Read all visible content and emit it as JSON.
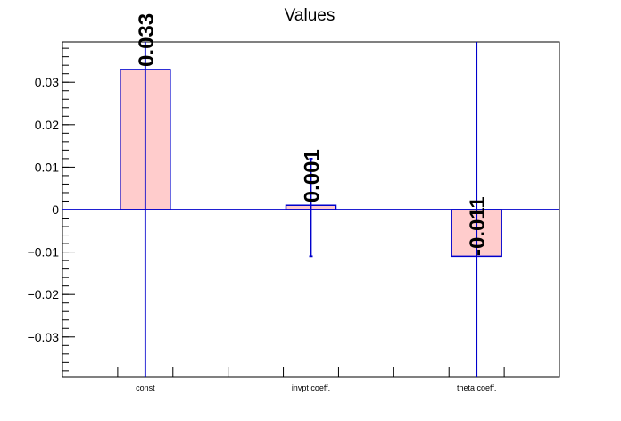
{
  "chart_data": {
    "type": "bar",
    "title": "Values",
    "xlabel": "",
    "ylabel": "",
    "categories": [
      "const",
      "invpt coeff.",
      "theta coeff."
    ],
    "values": [
      0.033,
      0.001,
      -0.011
    ],
    "value_labels": [
      "0.033",
      "0.001",
      "-0.011"
    ],
    "errors": [
      {
        "low": -0.04,
        "high": 0.04
      },
      {
        "low": -0.011,
        "high": 0.012
      },
      {
        "low": -0.04,
        "high": 0.04
      }
    ],
    "ylim": [
      -0.0395,
      0.0395
    ],
    "yticks": [
      -0.03,
      -0.02,
      -0.01,
      0,
      0.01,
      0.02,
      0.03
    ],
    "ytick_labels": [
      "−0.03",
      "−0.02",
      "−0.01",
      "0",
      "0.01",
      "0.02",
      "0.03"
    ],
    "grid": false,
    "legend": "none",
    "colors": {
      "bar_fill": "#ffcccc",
      "bar_edge": "#0000cc",
      "axis": "#000000",
      "zero_line": "#0000cc"
    }
  }
}
